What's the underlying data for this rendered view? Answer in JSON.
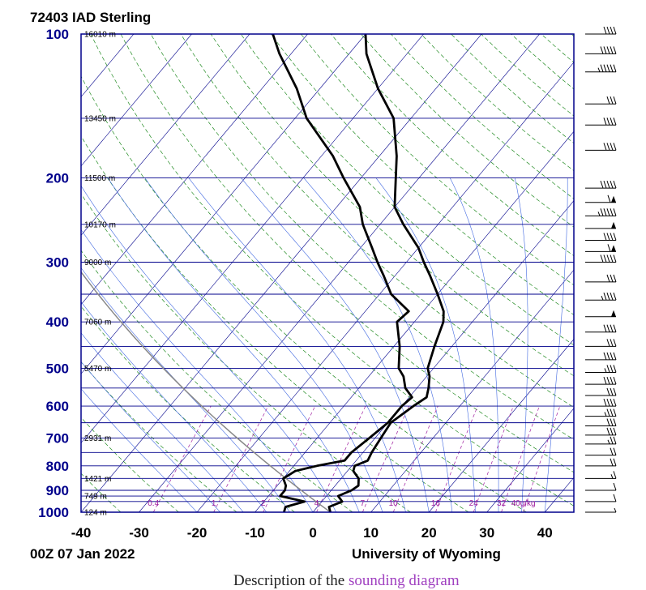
{
  "station_title": "72403 IAD Sterling",
  "footer_left": "00Z 07 Jan 2022",
  "footer_right": "University of Wyoming",
  "caption_text": "Description of the",
  "caption_link": "sounding diagram",
  "chart_data": {
    "type": "line",
    "title": "72403 IAD Sterling",
    "pressure_ticks": [
      100,
      200,
      300,
      400,
      500,
      600,
      700,
      800,
      900,
      1000
    ],
    "isobars": [
      100,
      150,
      200,
      250,
      300,
      350,
      400,
      450,
      500,
      550,
      600,
      650,
      700,
      750,
      800,
      850,
      900,
      925,
      950,
      1000
    ],
    "temperature_ticks": [
      -40,
      -30,
      -20,
      -10,
      0,
      10,
      20,
      30,
      40
    ],
    "xlim": [
      -40,
      45
    ],
    "ylim": [
      1000,
      100
    ],
    "height_labels": [
      {
        "p": 100,
        "text": "16010 m"
      },
      {
        "p": 150,
        "text": "13450 m"
      },
      {
        "p": 200,
        "text": "11500 m"
      },
      {
        "p": 250,
        "text": "10170 m"
      },
      {
        "p": 300,
        "text": "9000 m"
      },
      {
        "p": 400,
        "text": "7060 m"
      },
      {
        "p": 500,
        "text": "5470 m"
      },
      {
        "p": 700,
        "text": "2931 m"
      },
      {
        "p": 850,
        "text": "1421 m"
      },
      {
        "p": 925,
        "text": "749 m"
      },
      {
        "p": 1000,
        "text": "124 m"
      }
    ],
    "mixing_ratio_labels": [
      "0.4",
      "1",
      "2",
      "4",
      "7",
      "10",
      "16",
      "24",
      "32",
      "40g/kg"
    ],
    "mixing_ratio_values": [
      0.4,
      1,
      2,
      4,
      7,
      10,
      16,
      24,
      32,
      40
    ],
    "series": [
      {
        "name": "temperature",
        "points": [
          [
            1000,
            3.0
          ],
          [
            975,
            2.0
          ],
          [
            950,
            3.5
          ],
          [
            925,
            2.0
          ],
          [
            900,
            3.5
          ],
          [
            880,
            4.0
          ],
          [
            850,
            3.0
          ],
          [
            820,
            1.0
          ],
          [
            800,
            0.5
          ],
          [
            780,
            2.0
          ],
          [
            750,
            1.5
          ],
          [
            700,
            1.0
          ],
          [
            650,
            0.5
          ],
          [
            600,
            2.0
          ],
          [
            575,
            3.0
          ],
          [
            550,
            2.0
          ],
          [
            520,
            0.5
          ],
          [
            500,
            -1.0
          ],
          [
            450,
            -3.0
          ],
          [
            400,
            -5.0
          ],
          [
            380,
            -6.5
          ],
          [
            350,
            -10.0
          ],
          [
            320,
            -14.0
          ],
          [
            300,
            -17.0
          ],
          [
            280,
            -20.0
          ],
          [
            250,
            -26.0
          ],
          [
            230,
            -30.0
          ],
          [
            200,
            -34.0
          ],
          [
            180,
            -37.0
          ],
          [
            150,
            -43.0
          ],
          [
            130,
            -50.0
          ],
          [
            110,
            -57.0
          ],
          [
            100,
            -60.0
          ]
        ]
      },
      {
        "name": "dewpoint",
        "points": [
          [
            1000,
            -5.0
          ],
          [
            975,
            -5.5
          ],
          [
            950,
            -3.0
          ],
          [
            925,
            -8.0
          ],
          [
            900,
            -8.0
          ],
          [
            880,
            -8.5
          ],
          [
            850,
            -10.0
          ],
          [
            820,
            -9.0
          ],
          [
            800,
            -6.0
          ],
          [
            780,
            -2.0
          ],
          [
            750,
            -2.0
          ],
          [
            700,
            -1.0
          ],
          [
            650,
            0.0
          ],
          [
            600,
            0.0
          ],
          [
            575,
            0.5
          ],
          [
            550,
            -2.0
          ],
          [
            520,
            -4.0
          ],
          [
            500,
            -6.0
          ],
          [
            450,
            -9.0
          ],
          [
            400,
            -13.0
          ],
          [
            380,
            -12.5
          ],
          [
            350,
            -18.0
          ],
          [
            320,
            -22.0
          ],
          [
            300,
            -25.0
          ],
          [
            280,
            -28.0
          ],
          [
            250,
            -33.0
          ],
          [
            230,
            -36.0
          ],
          [
            200,
            -43.0
          ],
          [
            180,
            -48.0
          ],
          [
            150,
            -58.0
          ],
          [
            130,
            -64.0
          ],
          [
            110,
            -72.0
          ],
          [
            100,
            -76.0
          ]
        ]
      }
    ],
    "wind_barbs": [
      {
        "p": 100,
        "flags": 0,
        "full": 4,
        "half": 0
      },
      {
        "p": 110,
        "flags": 0,
        "full": 5,
        "half": 0
      },
      {
        "p": 120,
        "flags": 0,
        "full": 5,
        "half": 1
      },
      {
        "p": 140,
        "flags": 0,
        "full": 3,
        "half": 0
      },
      {
        "p": 155,
        "flags": 0,
        "full": 4,
        "half": 0
      },
      {
        "p": 175,
        "flags": 0,
        "full": 4,
        "half": 0
      },
      {
        "p": 210,
        "flags": 0,
        "full": 5,
        "half": 0
      },
      {
        "p": 225,
        "flags": 1,
        "full": 1,
        "half": 0
      },
      {
        "p": 240,
        "flags": 0,
        "full": 5,
        "half": 1
      },
      {
        "p": 255,
        "flags": 1,
        "full": 0,
        "half": 0
      },
      {
        "p": 270,
        "flags": 0,
        "full": 4,
        "half": 0
      },
      {
        "p": 285,
        "flags": 1,
        "full": 1,
        "half": 0
      },
      {
        "p": 300,
        "flags": 0,
        "full": 5,
        "half": 0
      },
      {
        "p": 330,
        "flags": 0,
        "full": 3,
        "half": 0
      },
      {
        "p": 360,
        "flags": 0,
        "full": 4,
        "half": 1
      },
      {
        "p": 390,
        "flags": 1,
        "full": 0,
        "half": 0
      },
      {
        "p": 420,
        "flags": 0,
        "full": 4,
        "half": 0
      },
      {
        "p": 450,
        "flags": 0,
        "full": 3,
        "half": 0
      },
      {
        "p": 480,
        "flags": 0,
        "full": 4,
        "half": 0
      },
      {
        "p": 510,
        "flags": 0,
        "full": 3,
        "half": 1
      },
      {
        "p": 540,
        "flags": 0,
        "full": 4,
        "half": 0
      },
      {
        "p": 570,
        "flags": 0,
        "full": 3,
        "half": 0
      },
      {
        "p": 600,
        "flags": 0,
        "full": 4,
        "half": 0
      },
      {
        "p": 630,
        "flags": 0,
        "full": 3,
        "half": 1
      },
      {
        "p": 660,
        "flags": 0,
        "full": 3,
        "half": 0
      },
      {
        "p": 690,
        "flags": 0,
        "full": 3,
        "half": 0
      },
      {
        "p": 720,
        "flags": 0,
        "full": 2,
        "half": 1
      },
      {
        "p": 760,
        "flags": 0,
        "full": 2,
        "half": 0
      },
      {
        "p": 800,
        "flags": 0,
        "full": 2,
        "half": 0
      },
      {
        "p": 850,
        "flags": 0,
        "full": 1,
        "half": 1
      },
      {
        "p": 900,
        "flags": 0,
        "full": 1,
        "half": 0
      },
      {
        "p": 950,
        "flags": 0,
        "full": 1,
        "half": 0
      },
      {
        "p": 1000,
        "flags": 0,
        "full": 0,
        "half": 1
      }
    ],
    "colors": {
      "frame": "#00008b",
      "isobar": "#00008b",
      "isotherm": "#00008b",
      "dry_adiabat": "#228b22",
      "moist_adiabat": "#4169e1",
      "mixing_ratio": "#a020a0",
      "parcel": "#888888",
      "temperature": "#000000",
      "dewpoint": "#000000"
    },
    "grid": true
  }
}
